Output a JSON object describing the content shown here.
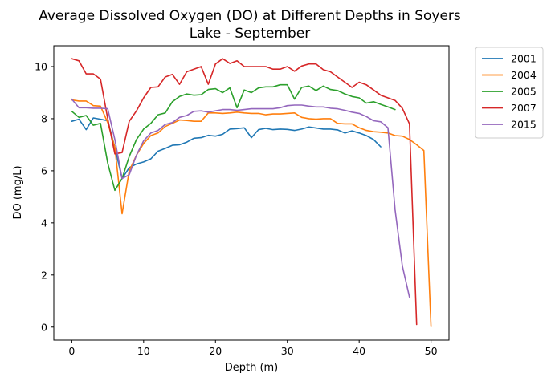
{
  "chart_data": {
    "type": "line",
    "title_line1": "Average Dissolved Oxygen (DO) at Different Depths in Soyers",
    "title_line2": "Lake - September",
    "xlabel": "Depth (m)",
    "ylabel": "DO (mg/L)",
    "xlim": [
      -2.5,
      52.5
    ],
    "ylim": [
      -0.5,
      10.8
    ],
    "xticks": [
      0,
      10,
      20,
      30,
      40,
      50
    ],
    "yticks": [
      0,
      2,
      4,
      6,
      8,
      10
    ],
    "grid": false,
    "legend_position": "outside-upper-right",
    "series": [
      {
        "name": "2001",
        "color": "#1f77b4",
        "x": [
          0,
          1,
          2,
          3,
          4,
          5,
          6,
          7,
          8,
          9,
          10,
          11,
          12,
          13,
          14,
          15,
          16,
          17,
          18,
          19,
          20,
          21,
          22,
          23,
          24,
          25,
          26,
          27,
          28,
          29,
          30,
          31,
          32,
          33,
          34,
          35,
          36,
          37,
          38,
          39,
          40,
          41,
          42,
          43
        ],
        "values": [
          7.9,
          7.98,
          7.58,
          8.03,
          7.98,
          7.92,
          6.9,
          5.7,
          6.12,
          6.26,
          6.34,
          6.46,
          6.75,
          6.86,
          6.98,
          7.0,
          7.1,
          7.25,
          7.27,
          7.36,
          7.33,
          7.4,
          7.6,
          7.62,
          7.65,
          7.27,
          7.58,
          7.63,
          7.58,
          7.6,
          7.59,
          7.55,
          7.6,
          7.68,
          7.64,
          7.6,
          7.6,
          7.57,
          7.45,
          7.53,
          7.45,
          7.35,
          7.2,
          6.92
        ]
      },
      {
        "name": "2004",
        "color": "#ff7f0e",
        "x": [
          0,
          1,
          2,
          3,
          4,
          5,
          6,
          7,
          8,
          9,
          10,
          11,
          12,
          13,
          14,
          15,
          16,
          17,
          18,
          19,
          20,
          21,
          22,
          23,
          24,
          25,
          26,
          27,
          28,
          29,
          30,
          31,
          32,
          33,
          34,
          35,
          36,
          37,
          38,
          39,
          40,
          41,
          42,
          43,
          44,
          45,
          46,
          47,
          48,
          49,
          50
        ],
        "values": [
          8.72,
          8.68,
          8.68,
          8.5,
          8.48,
          7.85,
          6.9,
          4.35,
          6.0,
          6.6,
          7.05,
          7.35,
          7.45,
          7.7,
          7.82,
          7.95,
          7.93,
          7.9,
          7.9,
          8.22,
          8.22,
          8.2,
          8.22,
          8.25,
          8.22,
          8.2,
          8.2,
          8.15,
          8.18,
          8.18,
          8.2,
          8.22,
          8.05,
          8.0,
          7.98,
          8.0,
          8.0,
          7.82,
          7.8,
          7.8,
          7.65,
          7.55,
          7.5,
          7.48,
          7.45,
          7.35,
          7.33,
          7.2,
          7.0,
          6.78,
          0.02
        ]
      },
      {
        "name": "2005",
        "color": "#2ca02c",
        "x": [
          0,
          1,
          2,
          3,
          4,
          5,
          6,
          7,
          8,
          9,
          10,
          11,
          12,
          13,
          14,
          15,
          16,
          17,
          18,
          19,
          20,
          21,
          22,
          23,
          24,
          25,
          26,
          27,
          28,
          29,
          30,
          31,
          32,
          33,
          34,
          35,
          36,
          37,
          38,
          39,
          40,
          41,
          42,
          43,
          44,
          45
        ],
        "values": [
          8.28,
          8.05,
          8.12,
          7.75,
          7.82,
          6.3,
          5.25,
          5.7,
          6.55,
          7.2,
          7.6,
          7.82,
          8.15,
          8.22,
          8.65,
          8.85,
          8.95,
          8.9,
          8.92,
          9.12,
          9.15,
          9.0,
          9.18,
          8.42,
          9.1,
          9.0,
          9.18,
          9.22,
          9.22,
          9.3,
          9.3,
          8.75,
          9.2,
          9.25,
          9.08,
          9.25,
          9.12,
          9.08,
          8.95,
          8.85,
          8.8,
          8.6,
          8.65,
          8.55,
          8.45,
          8.35
        ]
      },
      {
        "name": "2007",
        "color": "#d62728",
        "x": [
          0,
          1,
          2,
          3,
          4,
          5,
          6,
          7,
          8,
          9,
          10,
          11,
          12,
          13,
          14,
          15,
          16,
          17,
          18,
          19,
          20,
          21,
          22,
          23,
          24,
          25,
          26,
          27,
          28,
          29,
          30,
          31,
          32,
          33,
          34,
          35,
          36,
          37,
          38,
          39,
          40,
          41,
          42,
          43,
          44,
          45,
          46,
          47,
          48
        ],
        "values": [
          10.3,
          10.22,
          9.72,
          9.72,
          9.52,
          8.0,
          6.65,
          6.7,
          7.9,
          8.3,
          8.8,
          9.2,
          9.22,
          9.6,
          9.7,
          9.32,
          9.8,
          9.9,
          10.0,
          9.32,
          10.1,
          10.3,
          10.12,
          10.22,
          10.0,
          10.0,
          10.0,
          10.0,
          9.9,
          9.9,
          10.0,
          9.82,
          10.02,
          10.1,
          10.1,
          9.88,
          9.8,
          9.6,
          9.4,
          9.2,
          9.4,
          9.3,
          9.1,
          8.9,
          8.8,
          8.7,
          8.4,
          7.8,
          0.1
        ]
      },
      {
        "name": "2015",
        "color": "#9467bd",
        "x": [
          0,
          1,
          2,
          3,
          4,
          5,
          6,
          7,
          8,
          9,
          10,
          11,
          12,
          13,
          14,
          15,
          16,
          17,
          18,
          19,
          20,
          21,
          22,
          23,
          24,
          25,
          26,
          27,
          28,
          29,
          30,
          31,
          32,
          33,
          34,
          35,
          36,
          37,
          38,
          39,
          40,
          41,
          42,
          43,
          44,
          45,
          46,
          47
        ],
        "values": [
          8.75,
          8.42,
          8.42,
          8.4,
          8.4,
          8.38,
          7.2,
          5.7,
          5.85,
          6.6,
          7.15,
          7.45,
          7.55,
          7.78,
          7.85,
          8.05,
          8.12,
          8.28,
          8.3,
          8.25,
          8.3,
          8.35,
          8.35,
          8.32,
          8.35,
          8.38,
          8.38,
          8.38,
          8.38,
          8.42,
          8.5,
          8.52,
          8.52,
          8.48,
          8.45,
          8.45,
          8.4,
          8.38,
          8.32,
          8.25,
          8.2,
          8.08,
          7.92,
          7.88,
          7.65,
          4.5,
          2.35,
          1.15
        ]
      }
    ]
  }
}
